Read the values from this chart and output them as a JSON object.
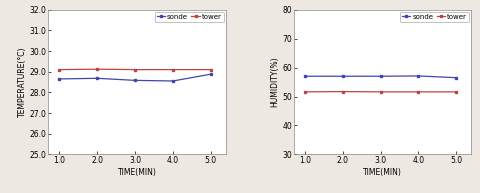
{
  "time": [
    1.0,
    2.0,
    3.0,
    4.0,
    5.0
  ],
  "temp_sonde": [
    28.65,
    28.68,
    28.58,
    28.55,
    28.88
  ],
  "temp_tower": [
    29.1,
    29.12,
    29.1,
    29.1,
    29.1
  ],
  "hum_sonde": [
    57.0,
    57.0,
    57.0,
    57.1,
    56.5
  ],
  "hum_tower": [
    51.6,
    51.7,
    51.6,
    51.6,
    51.6
  ],
  "temp_ylim": [
    25.0,
    32.0
  ],
  "temp_yticks": [
    25.0,
    26.0,
    27.0,
    28.0,
    29.0,
    30.0,
    31.0,
    32.0
  ],
  "hum_ylim": [
    30,
    80
  ],
  "hum_yticks": [
    30,
    40,
    50,
    60,
    70,
    80
  ],
  "xticks": [
    1.0,
    2.0,
    3.0,
    4.0,
    5.0
  ],
  "xlim": [
    0.7,
    5.4
  ],
  "color_sonde": "#4444aa",
  "color_tower": "#bb4444",
  "temp_ylabel": "TEMPERATURE(°C)",
  "hum_ylabel": "HUMIDITY(%)",
  "xlabel": "TIME(MIN)",
  "legend_labels": [
    "sonde",
    "tower"
  ],
  "marker": "s",
  "markersize": 2.0,
  "linewidth": 0.9,
  "tick_labelsize": 5.5,
  "axis_labelsize": 5.5,
  "legend_fontsize": 5.0,
  "bg_color": "#ede8e2",
  "plot_bg": "#ffffff"
}
